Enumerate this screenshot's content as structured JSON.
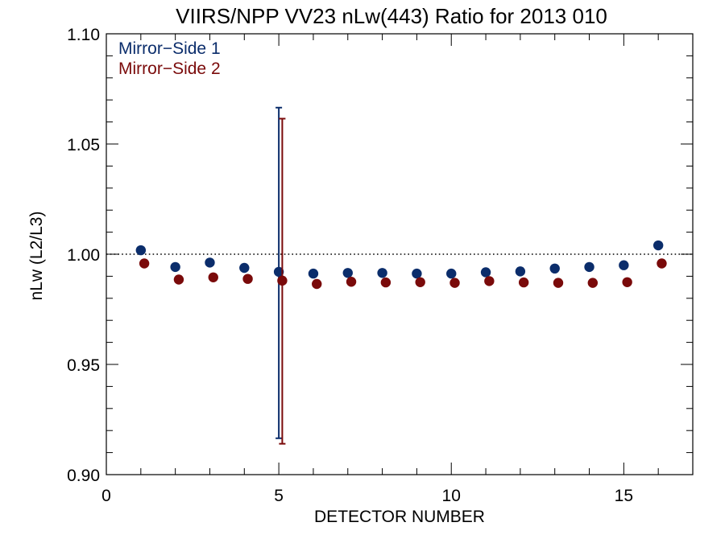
{
  "chart_data": {
    "type": "scatter",
    "title": "VIIRS/NPP VV23 nLw(443) Ratio for 2013 010",
    "xlabel": "DETECTOR NUMBER",
    "ylabel": "nLw (L2/L3)",
    "xlim": [
      0,
      17
    ],
    "ylim": [
      0.9,
      1.1
    ],
    "xticks": [
      0,
      5,
      10,
      15
    ],
    "xtick_labels": [
      "0",
      "5",
      "10",
      "15"
    ],
    "yticks": [
      0.9,
      0.95,
      1.0,
      1.05,
      1.1
    ],
    "ytick_labels": [
      "0.90",
      "0.95",
      "1.00",
      "1.05",
      "1.10"
    ],
    "reference_line": {
      "y": 1.0,
      "style": "dotted"
    },
    "legend_position": "top-left",
    "grid": false,
    "series": [
      {
        "name": "Mirror−Side 1",
        "color": "#0b2d6b",
        "x": [
          1,
          2,
          3,
          4,
          5,
          6,
          7,
          8,
          9,
          10,
          11,
          12,
          13,
          14,
          15,
          16
        ],
        "y": [
          1.0018,
          0.9942,
          0.9962,
          0.9938,
          0.992,
          0.9912,
          0.9915,
          0.9915,
          0.9912,
          0.9912,
          0.9918,
          0.9922,
          0.9935,
          0.9942,
          0.995,
          1.004
        ],
        "error_bars": [
          {
            "x": 5,
            "low": 0.9165,
            "high": 1.0665
          }
        ]
      },
      {
        "name": "Mirror−Side 2",
        "color": "#7a0a0a",
        "x": [
          1.1,
          2.1,
          3.1,
          4.1,
          5.1,
          6.1,
          7.1,
          8.1,
          9.1,
          10.1,
          11.1,
          12.1,
          13.1,
          14.1,
          15.1,
          16.1
        ],
        "y": [
          0.9958,
          0.9885,
          0.9895,
          0.9888,
          0.988,
          0.9865,
          0.9875,
          0.9872,
          0.9873,
          0.987,
          0.9878,
          0.9872,
          0.987,
          0.987,
          0.9873,
          0.9958
        ],
        "error_bars": [
          {
            "x": 5.1,
            "low": 0.914,
            "high": 1.0615
          }
        ]
      }
    ]
  }
}
